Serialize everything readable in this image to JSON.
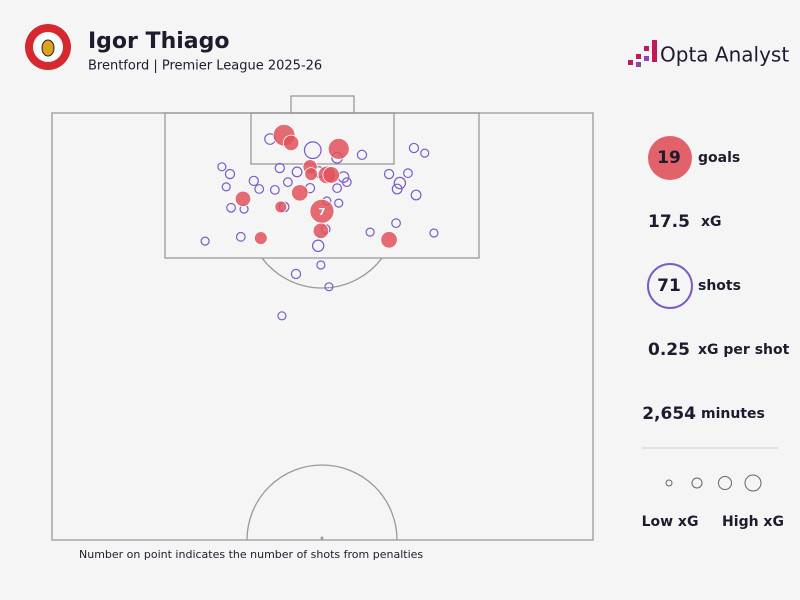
{
  "header": {
    "title": "Igor Thiago",
    "subtitle": "Brentford | Premier League 2025-26",
    "brand": "Opta Analyst"
  },
  "chart_data": {
    "type": "scatter",
    "xlim": [
      0,
      100
    ],
    "ylim": [
      0,
      100
    ],
    "series": [
      {
        "name": "Shots",
        "color": "#7a5cc8",
        "x": [
          40.3,
          48.2,
          52.7,
          57.3,
          66.9,
          68.9,
          31.4,
          32.9,
          42.1,
          45.3,
          49.3,
          53.9,
          62.3,
          65.8,
          32.2,
          37.3,
          38.3,
          41.2,
          43.6,
          47.7,
          52.7,
          54.5,
          64.3,
          63.8,
          67.3,
          33.1,
          35.5,
          42.9,
          50.8,
          53.0,
          63.6,
          58.8,
          50.6,
          70.6,
          28.3,
          34.9,
          49.2,
          49.7,
          45.1,
          51.2,
          42.5
        ],
        "y": [
          6.1,
          8.7,
          10.5,
          9.8,
          8.2,
          9.4,
          12.6,
          14.3,
          12.9,
          13.8,
          13.8,
          15.0,
          14.3,
          14.1,
          17.3,
          15.9,
          17.8,
          18.0,
          16.2,
          17.6,
          17.6,
          16.2,
          16.4,
          17.8,
          19.2,
          22.2,
          22.5,
          22.0,
          20.6,
          21.1,
          25.8,
          27.9,
          27.2,
          28.1,
          30.0,
          29.0,
          31.1,
          35.6,
          37.7,
          40.7,
          47.5
        ],
        "xg": [
          0.08,
          0.3,
          0.08,
          0.05,
          0.05,
          0.03,
          0.03,
          0.05,
          0.05,
          0.06,
          0.08,
          0.08,
          0.05,
          0.04,
          0.03,
          0.05,
          0.04,
          0.04,
          0.04,
          0.05,
          0.04,
          0.04,
          0.1,
          0.06,
          0.06,
          0.04,
          0.03,
          0.06,
          0.03,
          0.03,
          0.04,
          0.03,
          0.04,
          0.03,
          0.03,
          0.04,
          0.1,
          0.03,
          0.05,
          0.03,
          0.03
        ]
      },
      {
        "name": "Goals",
        "color": "#e0525c",
        "x": [
          42.9,
          44.2,
          53.0,
          47.7,
          47.9,
          50.8,
          51.6,
          45.8,
          35.3,
          42.3,
          49.9,
          49.7,
          38.6,
          62.3
        ],
        "y": [
          5.2,
          7.0,
          8.4,
          12.6,
          14.3,
          14.5,
          14.5,
          18.7,
          20.1,
          22.0,
          23.0,
          27.6,
          29.3,
          29.7
        ],
        "xg": [
          0.6,
          0.25,
          0.55,
          0.2,
          0.15,
          0.35,
          0.3,
          0.3,
          0.25,
          0.12,
          0.76,
          0.25,
          0.15,
          0.3
        ],
        "point_labels": [
          null,
          null,
          null,
          null,
          null,
          null,
          null,
          null,
          null,
          null,
          7,
          null,
          null,
          null
        ]
      }
    ],
    "note": "Number on point indicates the number of shots from penalties"
  },
  "stats": [
    {
      "value": "19",
      "label": "goals"
    },
    {
      "value": "17.5",
      "label": "xG"
    },
    {
      "value": "71",
      "label": "shots"
    },
    {
      "value": "0.25",
      "label": "xG per shot"
    },
    {
      "value": "2,654",
      "label": "minutes"
    }
  ],
  "legend": {
    "low": "Low xG",
    "high": "High xG"
  }
}
